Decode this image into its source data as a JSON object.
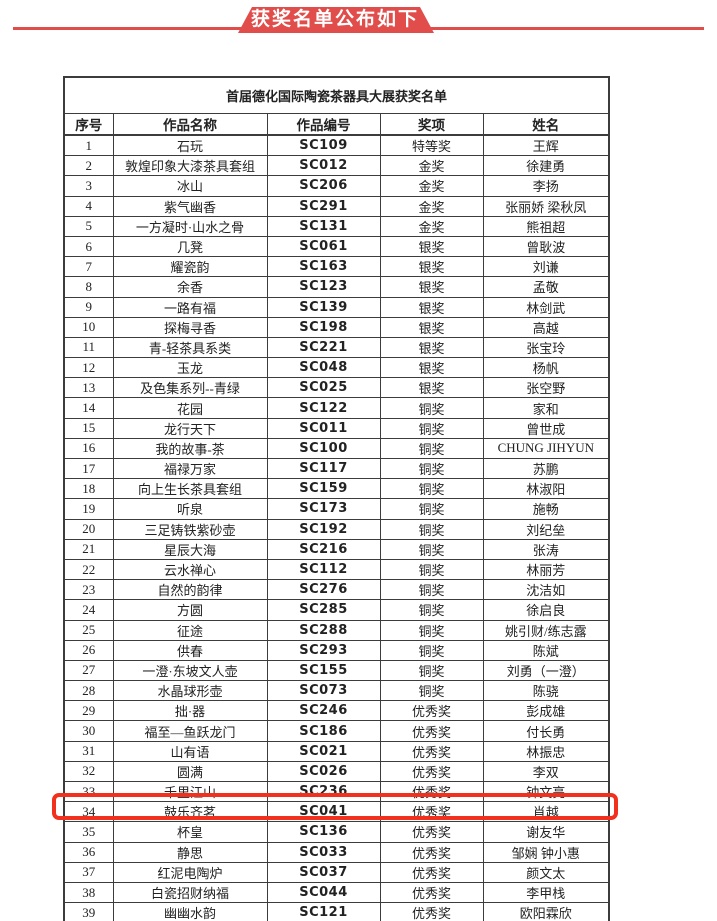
{
  "banner": {
    "title": "获奖名单公布如下",
    "ribbon_color": "#e04d4a",
    "line_color": "#e04d4a"
  },
  "table": {
    "title": "首届德化国际陶瓷茶器具大展获奖名单",
    "columns": [
      "序号",
      "作品名称",
      "作品编号",
      "奖项",
      "姓名"
    ],
    "rows": [
      [
        "1",
        "石玩",
        "SC109",
        "特等奖",
        "王辉"
      ],
      [
        "2",
        "敦煌印象大漆茶具套组",
        "SC012",
        "金奖",
        "徐建勇"
      ],
      [
        "3",
        "冰山",
        "SC206",
        "金奖",
        "李扬"
      ],
      [
        "4",
        "紫气幽香",
        "SC291",
        "金奖",
        "张丽娇 梁秋凤"
      ],
      [
        "5",
        "一方凝时·山水之骨",
        "SC131",
        "金奖",
        "熊祖超"
      ],
      [
        "6",
        "几凳",
        "SC061",
        "银奖",
        "曾耿波"
      ],
      [
        "7",
        "耀瓷韵",
        "SC163",
        "银奖",
        "刘谦"
      ],
      [
        "8",
        "余香",
        "SC123",
        "银奖",
        "孟敬"
      ],
      [
        "9",
        "一路有福",
        "SC139",
        "银奖",
        "林剑武"
      ],
      [
        "10",
        "探梅寻香",
        "SC198",
        "银奖",
        "高越"
      ],
      [
        "11",
        "青-轻茶具系类",
        "SC221",
        "银奖",
        "张宝玲"
      ],
      [
        "12",
        "玉龙",
        "SC048",
        "银奖",
        "杨帆"
      ],
      [
        "13",
        "及色集系列--青绿",
        "SC025",
        "银奖",
        "张空野"
      ],
      [
        "14",
        "花园",
        "SC122",
        "铜奖",
        "家和"
      ],
      [
        "15",
        "龙行天下",
        "SC011",
        "铜奖",
        "曾世成"
      ],
      [
        "16",
        "我的故事-茶",
        "SC100",
        "铜奖",
        "CHUNG JIHYUN"
      ],
      [
        "17",
        "福禄万家",
        "SC117",
        "铜奖",
        "苏鹏"
      ],
      [
        "18",
        "向上生长茶具套组",
        "SC159",
        "铜奖",
        "林淑阳"
      ],
      [
        "19",
        "听泉",
        "SC173",
        "铜奖",
        "施畅"
      ],
      [
        "20",
        "三足铸铁紫砂壶",
        "SC192",
        "铜奖",
        "刘纪垒"
      ],
      [
        "21",
        "星辰大海",
        "SC216",
        "铜奖",
        "张涛"
      ],
      [
        "22",
        "云水禅心",
        "SC112",
        "铜奖",
        "林丽芳"
      ],
      [
        "23",
        "自然的韵律",
        "SC276",
        "铜奖",
        "沈洁如"
      ],
      [
        "24",
        "方圆",
        "SC285",
        "铜奖",
        "徐启良"
      ],
      [
        "25",
        "征途",
        "SC288",
        "铜奖",
        "姚引财/练志露"
      ],
      [
        "26",
        "供春",
        "SC293",
        "铜奖",
        "陈斌"
      ],
      [
        "27",
        "一澄·东坡文人壶",
        "SC155",
        "铜奖",
        "刘勇（一澄）"
      ],
      [
        "28",
        "水晶球形壶",
        "SC073",
        "铜奖",
        "陈骁"
      ],
      [
        "29",
        "拙·器",
        "SC246",
        "优秀奖",
        "彭成雄"
      ],
      [
        "30",
        "福至—鱼跃龙门",
        "SC186",
        "优秀奖",
        "付长勇"
      ],
      [
        "31",
        "山有语",
        "SC021",
        "优秀奖",
        "林振忠"
      ],
      [
        "32",
        "圆满",
        "SC026",
        "优秀奖",
        "李双"
      ],
      [
        "33",
        "千里江山",
        "SC236",
        "优秀奖",
        "钟文亮"
      ],
      [
        "34",
        "鼓乐齐茗",
        "SC041",
        "优秀奖",
        "肖越"
      ],
      [
        "35",
        "杯皇",
        "SC136",
        "优秀奖",
        "谢友华"
      ],
      [
        "36",
        "静思",
        "SC033",
        "优秀奖",
        "邹娴  钟小惠"
      ],
      [
        "37",
        "红泥电陶炉",
        "SC037",
        "优秀奖",
        "颜文太"
      ],
      [
        "38",
        "白瓷招财纳福",
        "SC044",
        "优秀奖",
        "李甲栈"
      ],
      [
        "39",
        "幽幽水韵",
        "SC121",
        "优秀奖",
        "欧阳霖欣"
      ]
    ],
    "highlighted_row": "34",
    "highlight_color": "#f2301e"
  }
}
